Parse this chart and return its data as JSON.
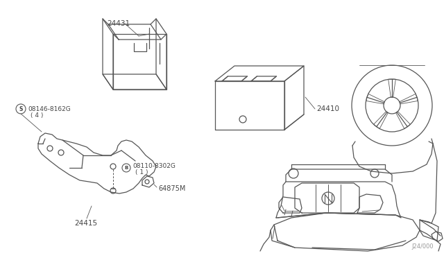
{
  "background_color": "#ffffff",
  "line_color": "#555555",
  "text_color": "#444444",
  "fig_width": 6.4,
  "fig_height": 3.72,
  "dpi": 100,
  "watermark": "J24/000",
  "parts": {
    "battery_tray_label": "24431",
    "battery_label": "24410",
    "bracket_label": "24415",
    "bolt1_label": "08146-8162G",
    "bolt1_qty": "( 4 )",
    "bolt2_label": "08110-8302G",
    "bolt2_qty": "( 1 )",
    "clip_label": "64875M"
  }
}
